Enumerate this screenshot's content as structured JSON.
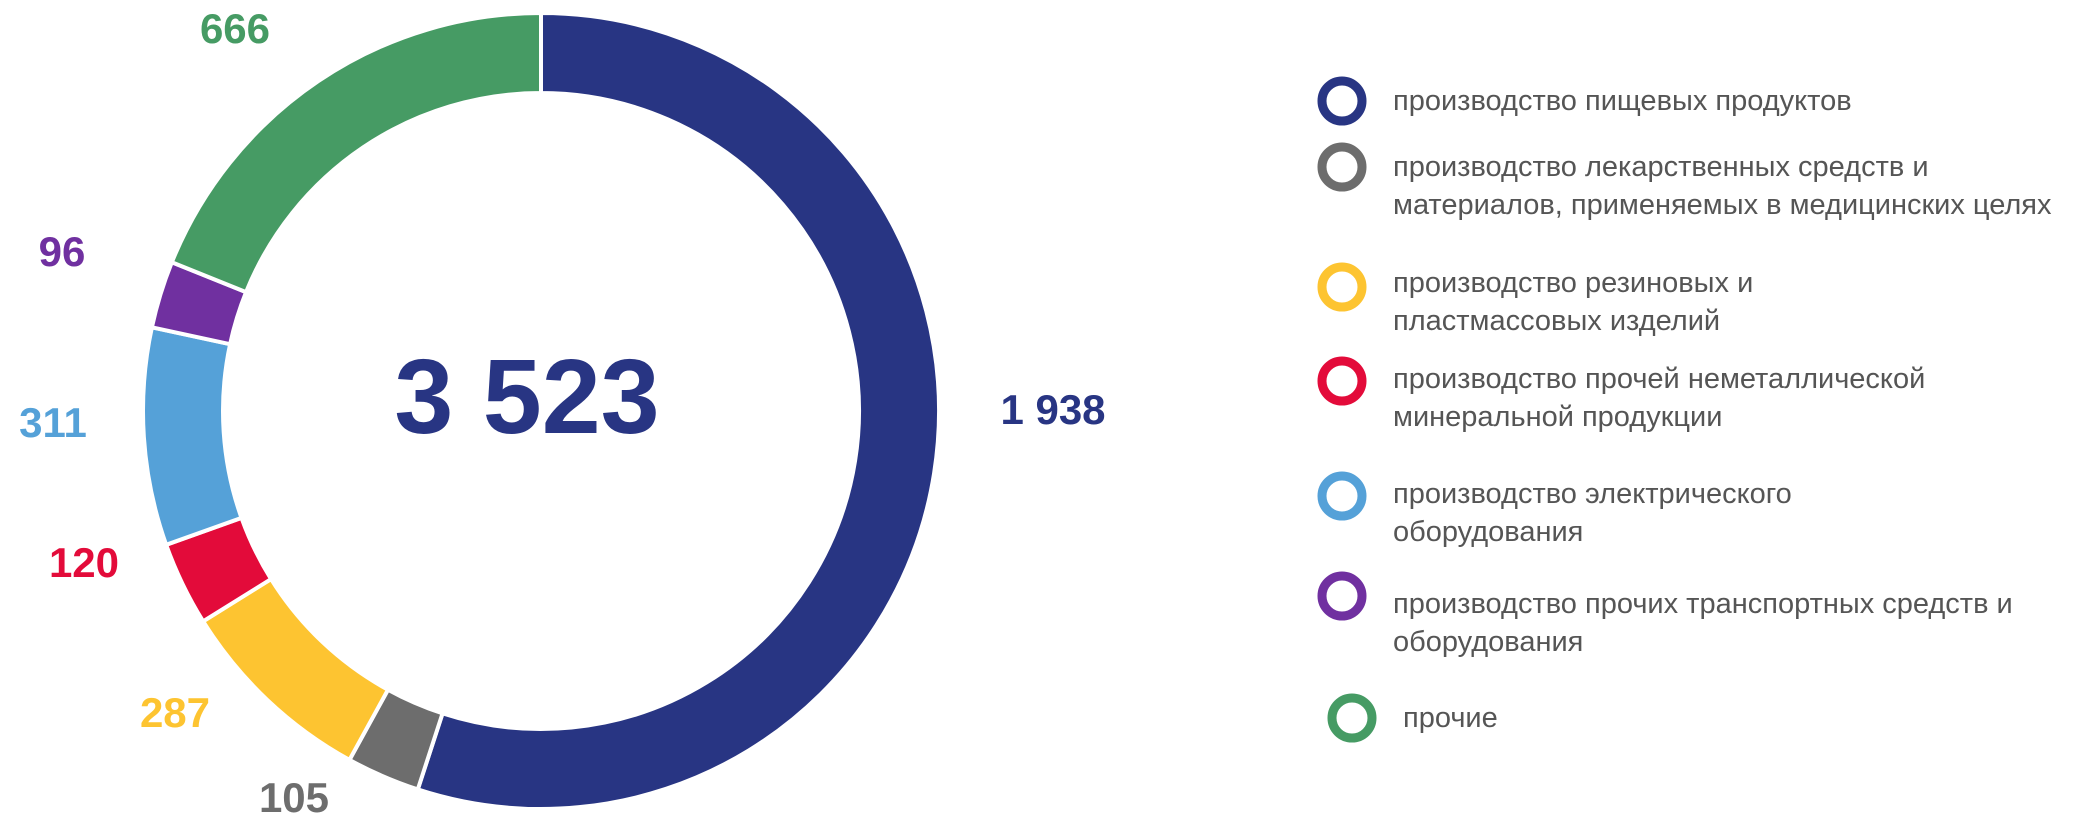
{
  "chart_data": {
    "type": "donut",
    "center_label": "3 523",
    "categories": [
      "производство пищевых продуктов",
      "производство лекарственных средств и материалов, применяемых в медицинских целях",
      "производство резиновых и пластмассовых изделий",
      "производство прочей неметаллической минеральной продукции",
      "производство электрического оборудования",
      "производство прочих транспортных средств и оборудования",
      "прочие"
    ],
    "values": [
      1938,
      105,
      287,
      120,
      311,
      96,
      666
    ],
    "value_labels": [
      "1 938",
      "105",
      "287",
      "120",
      "311",
      "96",
      "666"
    ],
    "colors": [
      "#283583",
      "#6d6d6d",
      "#fdc431",
      "#e30b3a",
      "#55a1d8",
      "#7030a0",
      "#469b64"
    ],
    "legend": "right"
  }
}
